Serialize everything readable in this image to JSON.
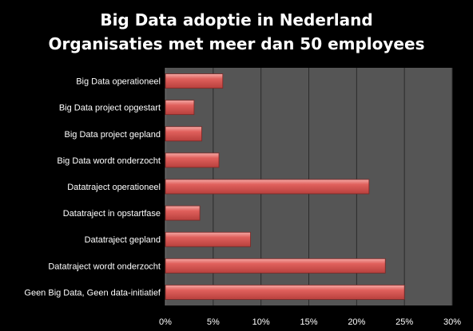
{
  "chart_data": {
    "type": "bar",
    "orientation": "horizontal",
    "title": "Big Data adoptie in Nederland",
    "subtitle": "Organisaties met meer dan 50 employees",
    "categories": [
      "Big Data operationeel",
      "Big Data project opgestart",
      "Big Data project gepland",
      "Big Data wordt onderzocht",
      "Datatraject operationeel",
      "Datatraject in opstartfase",
      "Datatraject gepland",
      "Datatraject wordt onderzocht",
      "Geen Big Data, Geen data-initiatief"
    ],
    "values": [
      6,
      3,
      3.8,
      5.6,
      21.3,
      3.6,
      8.9,
      23.0,
      25.0
    ],
    "xlim": [
      0,
      30
    ],
    "xticks": [
      0,
      5,
      10,
      15,
      20,
      25,
      30
    ],
    "xtick_labels": [
      "0%",
      "5%",
      "10%",
      "15%",
      "20%",
      "25%",
      "30%"
    ],
    "grid": true,
    "colors": {
      "background": "#000000",
      "plot_area": "#555555",
      "bar": "#d9524f",
      "grid": "#2a2a2a",
      "text": "#ffffff"
    }
  }
}
